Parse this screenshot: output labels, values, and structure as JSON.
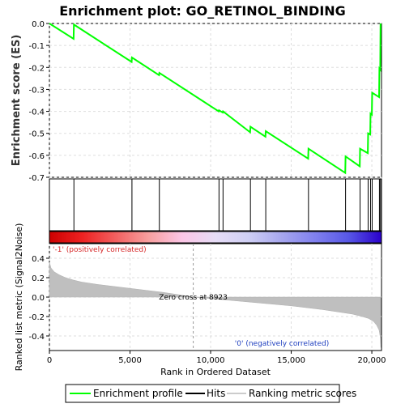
{
  "chart_data": {
    "type": "line",
    "title": "Enrichment plot: GO_RETINOL_BINDING",
    "es_panel": {
      "ylabel": "Enrichment score (ES)",
      "ylim": [
        -0.7,
        0.0
      ],
      "yticks": [
        "0.0",
        "-0.1",
        "-0.2",
        "-0.3",
        "-0.4",
        "-0.5",
        "-0.6",
        "-0.7"
      ],
      "ytick_values": [
        0.0,
        -0.1,
        -0.2,
        -0.3,
        -0.4,
        -0.5,
        -0.6,
        -0.7
      ],
      "line_color": "#00ff00",
      "series": [
        {
          "x": [
            0,
            1500,
            1520,
            5100,
            5120,
            6800,
            6820,
            10500,
            10520,
            10750,
            10770,
            12450,
            12470,
            13400,
            13420,
            16050,
            16070,
            18350,
            18370,
            19250,
            19270,
            19750,
            19770,
            19900,
            19920,
            20000,
            20020,
            20450,
            20470,
            20520,
            20540
          ],
          "y": [
            0.0,
            -0.07,
            -0.005,
            -0.175,
            -0.155,
            -0.235,
            -0.225,
            -0.4,
            -0.395,
            -0.405,
            -0.4,
            -0.495,
            -0.47,
            -0.515,
            -0.49,
            -0.615,
            -0.57,
            -0.68,
            -0.605,
            -0.65,
            -0.57,
            -0.59,
            -0.5,
            -0.505,
            -0.41,
            -0.415,
            -0.315,
            -0.335,
            -0.205,
            -0.21,
            0.0
          ]
        }
      ]
    },
    "hits": [
      1520,
      5120,
      6820,
      10520,
      10770,
      12470,
      13420,
      16070,
      18370,
      19270,
      19770,
      19920,
      20020,
      20470,
      20540
    ],
    "ranking_panel": {
      "ylabel": "Ranked list metric (Signal2Noise)",
      "xlabel": "Rank in Ordered Dataset",
      "xlim": [
        0,
        20600
      ],
      "ylim": [
        -0.55,
        0.55
      ],
      "xticks": [
        "0",
        "5,000",
        "10,000",
        "15,000",
        "20,000"
      ],
      "xtick_values": [
        0,
        5000,
        10000,
        15000,
        20000
      ],
      "yticks": [
        "0.4",
        "0.2",
        "0.0",
        "-0.2",
        "-0.4"
      ],
      "ytick_values": [
        0.4,
        0.2,
        0.0,
        -0.2,
        -0.4
      ],
      "zero_cross": 8923,
      "zero_cross_label": "Zero cross at 8923",
      "positive_note": "'-1' (positively correlated)",
      "negative_note": "'0' (negatively correlated)",
      "metric_profile": {
        "x": [
          0,
          100,
          300,
          600,
          1000,
          1500,
          2000,
          3000,
          4000,
          5000,
          6000,
          7000,
          8000,
          8923,
          10000,
          11000,
          12000,
          13000,
          14000,
          15000,
          16000,
          17000,
          18000,
          18800,
          19400,
          19800,
          20100,
          20300,
          20450,
          20530,
          20560
        ],
        "y": [
          0.36,
          0.3,
          0.26,
          0.23,
          0.2,
          0.175,
          0.155,
          0.13,
          0.11,
          0.09,
          0.07,
          0.05,
          0.025,
          0.0,
          -0.015,
          -0.03,
          -0.045,
          -0.06,
          -0.075,
          -0.09,
          -0.11,
          -0.13,
          -0.155,
          -0.175,
          -0.2,
          -0.22,
          -0.25,
          -0.29,
          -0.34,
          -0.42,
          -0.52
        ]
      }
    },
    "colorbar_stops": [
      "#cc0000",
      "#ee2222",
      "#f26060",
      "#f8a0a0",
      "#fbc6e6",
      "#e6dcf6",
      "#cfcff4",
      "#a6a6ee",
      "#8080ee",
      "#5858e6",
      "#2a00cc"
    ],
    "legend": {
      "placement": "bottom",
      "items": [
        {
          "label": "Enrichment profile",
          "color": "#00ff00"
        },
        {
          "label": "Hits",
          "color": "#000000"
        },
        {
          "label": "Ranking metric scores",
          "color": "#cccccc"
        }
      ]
    }
  }
}
